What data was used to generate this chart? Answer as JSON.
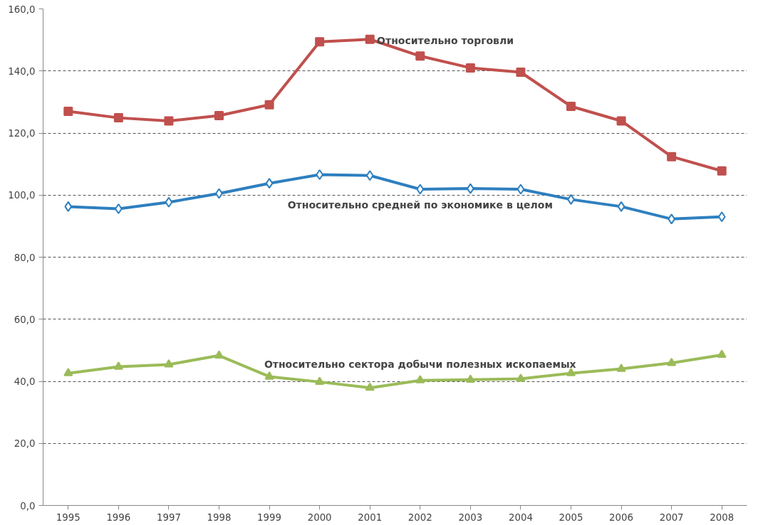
{
  "chart_data": {
    "type": "line",
    "categories": [
      "1995",
      "1996",
      "1997",
      "1998",
      "1999",
      "2000",
      "2001",
      "2002",
      "2003",
      "2004",
      "2005",
      "2006",
      "2007",
      "2008"
    ],
    "series": [
      {
        "name": "Относительно торговли",
        "color": "#c0504d",
        "marker": "square",
        "values": [
          127.0,
          124.9,
          123.9,
          125.6,
          129.1,
          149.4,
          150.2,
          144.8,
          141.0,
          139.6,
          128.6,
          123.9,
          112.4,
          107.8
        ]
      },
      {
        "name": "Относительно средней по экономике в целом",
        "color": "#2e7fbf",
        "marker": "diamond",
        "values": [
          96.3,
          95.6,
          97.7,
          100.5,
          103.8,
          106.6,
          106.3,
          101.9,
          102.1,
          101.9,
          98.6,
          96.3,
          92.3,
          93.0
        ]
      },
      {
        "name": "Относительно сектора добычи полезных ископаемых",
        "color": "#9bbb59",
        "marker": "triangle",
        "values": [
          42.6,
          44.7,
          45.4,
          48.3,
          41.5,
          39.8,
          37.9,
          40.3,
          40.5,
          40.8,
          42.6,
          44.0,
          45.9,
          48.5
        ]
      }
    ],
    "ylim": [
      0,
      160
    ],
    "yticks": [
      {
        "value": 0,
        "label": "0,0"
      },
      {
        "value": 20,
        "label": "20,0"
      },
      {
        "value": 40,
        "label": "40,0"
      },
      {
        "value": 60,
        "label": "60,0"
      },
      {
        "value": 80,
        "label": "80,0"
      },
      {
        "value": 100,
        "label": "100,0"
      },
      {
        "value": 120,
        "label": "120,0"
      },
      {
        "value": 140,
        "label": "140,0"
      },
      {
        "value": 160,
        "label": "160,0"
      }
    ],
    "grid": "y",
    "line_style": "solid"
  }
}
